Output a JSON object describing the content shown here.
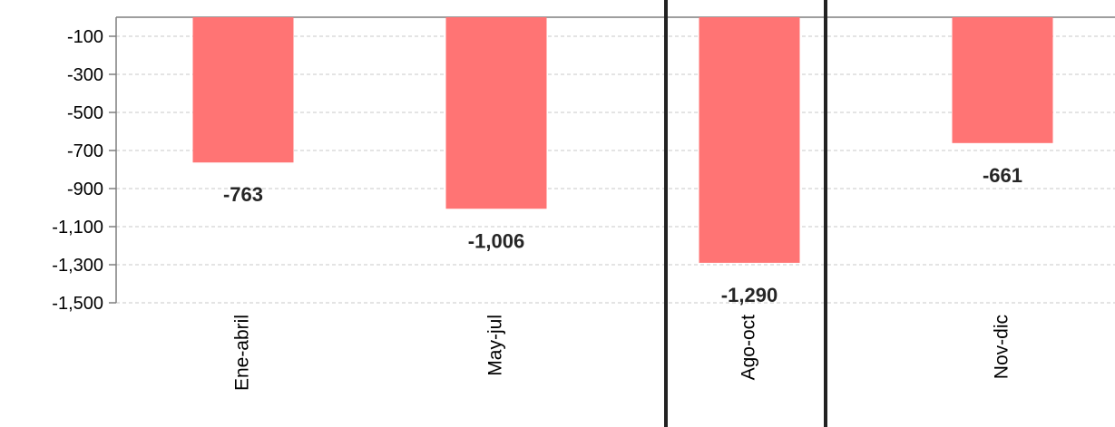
{
  "chart_data": {
    "type": "bar",
    "title": "",
    "categories": [
      "Ene-abril",
      "May-jul",
      "Ago-oct",
      "Nov-dic"
    ],
    "values": [
      -763,
      -1006,
      -1290,
      -661
    ],
    "data_labels": [
      "-763",
      "-1,006",
      "-1,290",
      "-661"
    ],
    "y_ticks": [
      -100,
      -300,
      -500,
      -700,
      -900,
      -1100,
      -1300,
      -1500
    ],
    "y_tick_labels": [
      "-100",
      "-300",
      "-500",
      "-700",
      "-900",
      "-1,100",
      "-1,300",
      "-1,500"
    ],
    "ylim": [
      -1500,
      0
    ],
    "grid": true,
    "bar_color": "#ff7474",
    "highlighted_category": "Ago-oct",
    "xlabel": "",
    "ylabel": ""
  }
}
